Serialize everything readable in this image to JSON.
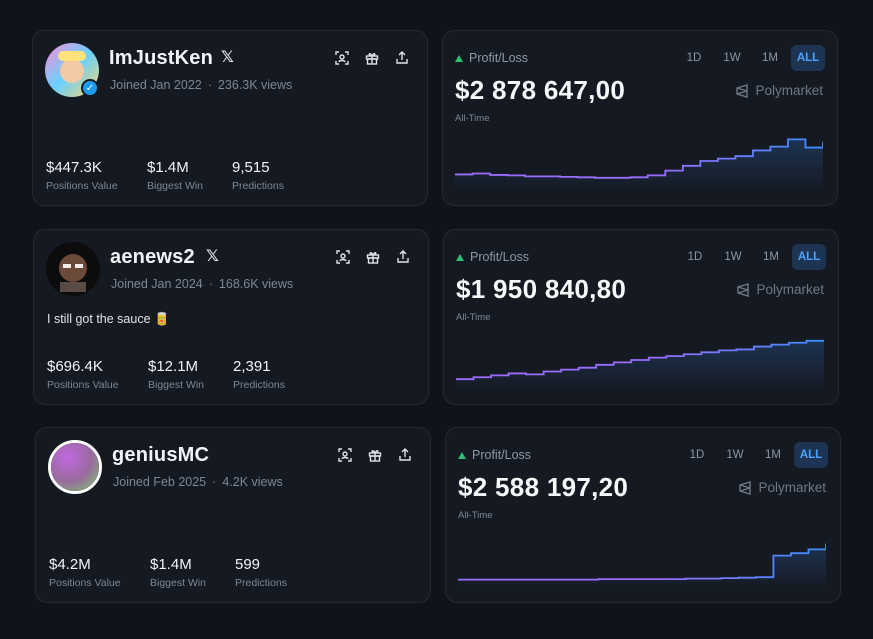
{
  "profiles": [
    {
      "username": "ImJustKen",
      "joined": "Joined Jan 2022",
      "views": "236.3K views",
      "verified": true,
      "bio": "",
      "stats": [
        {
          "value": "$447.3K",
          "label": "Positions Value"
        },
        {
          "value": "$1.4M",
          "label": "Biggest Win"
        },
        {
          "value": "9,515",
          "label": "Predictions"
        }
      ]
    },
    {
      "username": "aenews2",
      "joined": "Joined Jan 2024",
      "views": "168.6K views",
      "verified": false,
      "bio": "I still got the sauce 🥫",
      "stats": [
        {
          "value": "$696.4K",
          "label": "Positions Value"
        },
        {
          "value": "$12.1M",
          "label": "Biggest Win"
        },
        {
          "value": "2,391",
          "label": "Predictions"
        }
      ]
    },
    {
      "username": "geniusMC",
      "joined": "Joined Feb 2025",
      "views": "4.2K views",
      "verified": false,
      "bio": "",
      "stats": [
        {
          "value": "$4.2M",
          "label": "Positions Value"
        },
        {
          "value": "$1.4M",
          "label": "Biggest Win"
        },
        {
          "value": "599",
          "label": "Predictions"
        }
      ]
    }
  ],
  "pnl": [
    {
      "label": "Profit/Loss",
      "value": "$2 878 647,00",
      "period": "All-Time",
      "brand": "Polymarket",
      "ranges": [
        "1D",
        "1W",
        "1M",
        "ALL"
      ],
      "active_range": "ALL"
    },
    {
      "label": "Profit/Loss",
      "value": "$1 950 840,80",
      "period": "All-Time",
      "brand": "Polymarket",
      "ranges": [
        "1D",
        "1W",
        "1M",
        "ALL"
      ],
      "active_range": "ALL"
    },
    {
      "label": "Profit/Loss",
      "value": "$2 588 197,20",
      "period": "All-Time",
      "brand": "Polymarket",
      "ranges": [
        "1D",
        "1W",
        "1M",
        "ALL"
      ],
      "active_range": "ALL"
    }
  ],
  "chart_data": [
    {
      "type": "line",
      "y": [
        0.22,
        0.24,
        0.21,
        0.2,
        0.18,
        0.18,
        0.17,
        0.16,
        0.15,
        0.15,
        0.16,
        0.2,
        0.3,
        0.4,
        0.5,
        0.55,
        0.6,
        0.72,
        0.8,
        0.95,
        0.78,
        0.9
      ]
    },
    {
      "type": "line",
      "y": [
        0.1,
        0.14,
        0.18,
        0.22,
        0.2,
        0.26,
        0.3,
        0.34,
        0.4,
        0.45,
        0.5,
        0.55,
        0.58,
        0.62,
        0.66,
        0.7,
        0.72,
        0.78,
        0.82,
        0.86,
        0.9,
        0.92
      ]
    },
    {
      "type": "line",
      "y": [
        0.05,
        0.05,
        0.05,
        0.05,
        0.05,
        0.05,
        0.05,
        0.05,
        0.06,
        0.06,
        0.06,
        0.06,
        0.06,
        0.07,
        0.07,
        0.08,
        0.09,
        0.1,
        0.55,
        0.6,
        0.68,
        0.8
      ]
    }
  ],
  "colors": {
    "line_start": "#9b6dff",
    "line_end": "#3a8dff",
    "accent": "#4ba3ff",
    "up": "#2fbf71"
  },
  "icons": [
    "x-logo-icon",
    "scan-icon",
    "gift-icon",
    "share-icon",
    "polymarket-logo-icon"
  ]
}
